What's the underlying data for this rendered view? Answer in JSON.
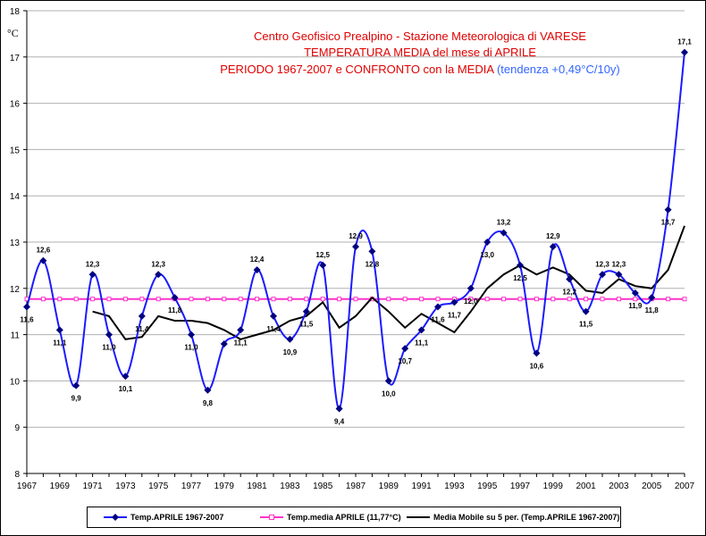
{
  "title": {
    "line1": "Centro Geofisico Prealpino - Stazione Meteorologica di VARESE",
    "line2": "TEMPERATURA MEDIA del mese di APRILE",
    "line3": "PERIODO 1967-2007 e CONFRONTO con la MEDIA",
    "trend": "(tendenza +0,49°C/10y)"
  },
  "legend": {
    "series1": "Temp.APRILE 1967-2007",
    "series2": "Temp.media APRILE (11,77°C)",
    "series3": "Media Mobile su 5 per. (Temp.APRILE 1967-2007)"
  },
  "colors": {
    "series1": "#1a1aff",
    "series2": "#ff33cc",
    "series3": "#000000",
    "grid": "#b0b0b0",
    "title": "#e00000",
    "trend": "#3366ff"
  },
  "logo": {
    "icon": "coat-of-arms-icon"
  },
  "chart_data": {
    "type": "line",
    "ylabel": "°C",
    "ylim": [
      8,
      18
    ],
    "yticks": [
      8,
      9,
      10,
      11,
      12,
      13,
      14,
      15,
      16,
      17,
      18
    ],
    "xlim": [
      1967,
      2007
    ],
    "xticks": [
      1967,
      1969,
      1971,
      1973,
      1975,
      1977,
      1979,
      1981,
      1983,
      1985,
      1987,
      1989,
      1991,
      1993,
      1995,
      1997,
      1999,
      2001,
      2003,
      2005,
      2007
    ],
    "grid": "horizontal",
    "legend_position": "bottom",
    "x": [
      1967,
      1968,
      1969,
      1970,
      1971,
      1972,
      1973,
      1974,
      1975,
      1976,
      1977,
      1978,
      1979,
      1980,
      1981,
      1982,
      1983,
      1984,
      1985,
      1986,
      1987,
      1988,
      1989,
      1990,
      1991,
      1992,
      1993,
      1994,
      1995,
      1996,
      1997,
      1998,
      1999,
      2000,
      2001,
      2002,
      2003,
      2004,
      2005,
      2006,
      2007
    ],
    "series": [
      {
        "name": "Temp.APRILE 1967-2007",
        "values": [
          11.6,
          12.6,
          11.1,
          9.9,
          12.3,
          11.0,
          10.1,
          11.4,
          12.3,
          11.8,
          11.0,
          9.8,
          10.8,
          11.1,
          12.4,
          11.4,
          10.9,
          11.5,
          12.5,
          9.4,
          12.9,
          12.8,
          10.0,
          10.7,
          11.1,
          11.6,
          11.7,
          12.0,
          13.0,
          13.2,
          12.5,
          10.6,
          12.9,
          12.2,
          11.5,
          12.3,
          12.3,
          11.9,
          11.8,
          13.7,
          17.1
        ],
        "labels": [
          "11,6",
          "12,6",
          "11,1",
          "9,9",
          "12,3",
          "11,0",
          "10,1",
          "11,4",
          "12,3",
          "11,8",
          "11,0",
          "9,8",
          "",
          "11,1",
          "12,4",
          "11,4",
          "10,9",
          "11,5",
          "12,5",
          "9,4",
          "12,9",
          "12,8",
          "10,0",
          "10,7",
          "11,1",
          "11,6",
          "11,7",
          "12,0",
          "13,0",
          "13,2",
          "12,5",
          "10,6",
          "12,9",
          "12,2",
          "11,5",
          "12,3",
          "12,3",
          "11,9",
          "11,8",
          "13,7",
          "17,1"
        ]
      },
      {
        "name": "Temp.media APRILE (11,77°C)",
        "values": [
          11.77,
          11.77,
          11.77,
          11.77,
          11.77,
          11.77,
          11.77,
          11.77,
          11.77,
          11.77,
          11.77,
          11.77,
          11.77,
          11.77,
          11.77,
          11.77,
          11.77,
          11.77,
          11.77,
          11.77,
          11.77,
          11.77,
          11.77,
          11.77,
          11.77,
          11.77,
          11.77,
          11.77,
          11.77,
          11.77,
          11.77,
          11.77,
          11.77,
          11.77,
          11.77,
          11.77,
          11.77,
          11.77,
          11.77,
          11.77,
          11.77
        ]
      },
      {
        "name": "Media Mobile su 5 per. (Temp.APRILE 1967-2007)",
        "values": [
          null,
          null,
          null,
          null,
          11.5,
          11.4,
          10.9,
          10.95,
          11.4,
          11.3,
          11.3,
          11.25,
          11.1,
          10.9,
          11.0,
          11.1,
          11.3,
          11.4,
          11.7,
          11.15,
          11.4,
          11.8,
          11.5,
          11.15,
          11.45,
          11.25,
          11.05,
          11.5,
          12.0,
          12.3,
          12.5,
          12.3,
          12.45,
          12.3,
          11.95,
          11.9,
          12.2,
          12.05,
          12.0,
          12.4,
          13.35
        ]
      }
    ]
  }
}
